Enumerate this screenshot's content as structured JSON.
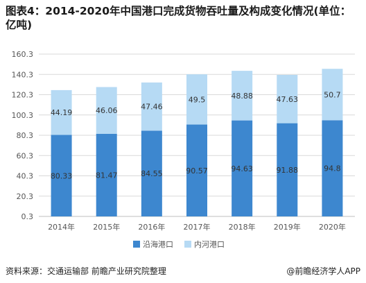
{
  "title": "图表4：2014-2020年中国港口完成货物吞吐量及构成变化情况(单位：亿吨)",
  "footer": {
    "source": "资料来源：交通运输部 前瞻产业研究院整理",
    "brand": "@前瞻经济学人APP"
  },
  "colors": {
    "coastal": "#3d87cf",
    "inland": "#b6daf4",
    "grid": "#d9d9d9",
    "axis": "#bfbfbf"
  },
  "chart_data": {
    "type": "bar",
    "stacked": true,
    "categories": [
      "2014年",
      "2015年",
      "2016年",
      "2017年",
      "2018年",
      "2019年",
      "2020年"
    ],
    "series": [
      {
        "name": "沿海港口",
        "values": [
          80.33,
          81.47,
          84.55,
          90.57,
          94.63,
          91.88,
          94.8
        ],
        "labels": [
          "80.33",
          "81.47",
          "84.55",
          "90.57",
          "94.63",
          "91.88",
          "94.8"
        ],
        "color": "#3d87cf"
      },
      {
        "name": "内河港口",
        "values": [
          44.19,
          46.06,
          47.46,
          49.5,
          48.88,
          47.63,
          50.7
        ],
        "labels": [
          "44.19",
          "46.06",
          "47.46",
          "49.5",
          "48.88",
          "47.63",
          "50.7"
        ],
        "color": "#b6daf4"
      }
    ],
    "yticks": [
      "0.3",
      "20.3",
      "40.3",
      "60.3",
      "80.3",
      "100.3",
      "120.3",
      "140.3",
      "160.3"
    ],
    "ylim": [
      0.3,
      160.3
    ],
    "grid": true,
    "legend": "bottom"
  }
}
